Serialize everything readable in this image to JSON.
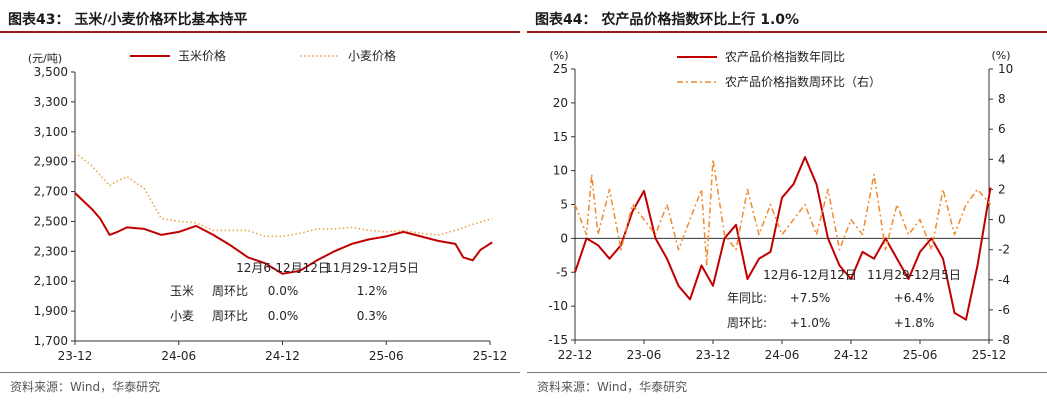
{
  "left": {
    "title": "图表43： 玉米/小麦价格环比基本持平",
    "source": "资料来源：Wind，华泰研究"
  },
  "right": {
    "title": "图表44： 农产品价格指数环比上行 1.0%",
    "source": "资料来源：Wind，华泰研究"
  },
  "colors": {
    "red": "#c00000",
    "orange": "#f08a30",
    "gold": "#e8a040",
    "title_rule": "#9a1b1b"
  },
  "chart_data": [
    {
      "type": "line",
      "ylabel": "(元/吨)",
      "ylim": [
        1700,
        3500
      ],
      "yticks": [
        "1,700",
        "1,900",
        "2,100",
        "2,300",
        "2,500",
        "2,700",
        "2,900",
        "3,100",
        "3,300",
        "3,500"
      ],
      "x_range": [
        "2023-12",
        "2025-12"
      ],
      "xtick_labels": [
        "23-12",
        "24-06",
        "24-12",
        "25-06",
        "25-12"
      ],
      "grid": false,
      "legend_position": "top",
      "series": [
        {
          "name": "玉米价格",
          "style": "solid",
          "x": [
            "2023-12-01",
            "2024-01-01",
            "2024-01-15",
            "2024-02-01",
            "2024-02-15",
            "2024-03-01",
            "2024-04-01",
            "2024-05-01",
            "2024-06-01",
            "2024-07-01",
            "2024-08-01",
            "2024-09-01",
            "2024-10-01",
            "2024-11-01",
            "2024-12-01",
            "2025-01-01",
            "2025-02-01",
            "2025-03-01",
            "2025-04-01",
            "2025-05-01",
            "2025-06-01",
            "2025-07-01",
            "2025-08-01",
            "2025-09-01",
            "2025-10-01",
            "2025-10-15",
            "2025-11-01",
            "2025-11-15",
            "2025-12-05"
          ],
          "values": [
            2690,
            2580,
            2520,
            2410,
            2430,
            2460,
            2450,
            2410,
            2430,
            2470,
            2410,
            2340,
            2260,
            2220,
            2150,
            2170,
            2240,
            2300,
            2350,
            2380,
            2400,
            2430,
            2400,
            2370,
            2350,
            2260,
            2240,
            2310,
            2360
          ]
        },
        {
          "name": "小麦价格",
          "style": "dotted",
          "x": [
            "2023-12-01",
            "2024-01-01",
            "2024-02-01",
            "2024-02-15",
            "2024-03-01",
            "2024-04-01",
            "2024-05-01",
            "2024-06-01",
            "2024-07-01",
            "2024-08-01",
            "2024-09-01",
            "2024-10-01",
            "2024-11-01",
            "2024-12-01",
            "2025-01-01",
            "2025-02-01",
            "2025-03-01",
            "2025-04-01",
            "2025-05-01",
            "2025-06-01",
            "2025-07-01",
            "2025-08-01",
            "2025-09-01",
            "2025-10-01",
            "2025-11-01",
            "2025-12-05"
          ],
          "values": [
            2960,
            2870,
            2740,
            2770,
            2800,
            2720,
            2520,
            2500,
            2490,
            2440,
            2440,
            2440,
            2400,
            2400,
            2420,
            2450,
            2450,
            2460,
            2440,
            2430,
            2440,
            2420,
            2410,
            2440,
            2480,
            2520
          ]
        }
      ],
      "annotation": {
        "headers": [
          "12月6-12月12日",
          "11月29-12月5日"
        ],
        "rows": [
          {
            "label": "玉米",
            "sub": "周环比",
            "values": [
              "0.0%",
              "1.2%"
            ]
          },
          {
            "label": "小麦",
            "sub": "周环比",
            "values": [
              "0.0%",
              "0.3%"
            ]
          }
        ]
      }
    },
    {
      "type": "line",
      "ylabel": "(%)",
      "ylabel_right": "(%)",
      "ylim": [
        -15,
        25
      ],
      "ylim_right": [
        -8,
        10
      ],
      "yticks": [
        "-15",
        "-10",
        "-5",
        "0",
        "5",
        "10",
        "15",
        "20",
        "25"
      ],
      "yticks_right": [
        "-8",
        "-6",
        "-4",
        "-2",
        "0",
        "2",
        "4",
        "6",
        "8",
        "10"
      ],
      "x_range": [
        "2022-12",
        "2025-12"
      ],
      "xtick_labels": [
        "22-12",
        "23-06",
        "23-12",
        "24-06",
        "24-12",
        "25-06",
        "25-12"
      ],
      "grid": false,
      "legend_position": "top",
      "series": [
        {
          "name": "农产品价格指数年同比",
          "style": "solid",
          "axis": "left",
          "x": [
            "2022-12-01",
            "2023-01-01",
            "2023-02-01",
            "2023-03-01",
            "2023-04-01",
            "2023-05-01",
            "2023-06-01",
            "2023-07-01",
            "2023-08-01",
            "2023-09-01",
            "2023-10-01",
            "2023-11-01",
            "2023-12-01",
            "2024-01-01",
            "2024-02-01",
            "2024-03-01",
            "2024-04-01",
            "2024-05-01",
            "2024-06-01",
            "2024-07-01",
            "2024-08-01",
            "2024-09-01",
            "2024-10-01",
            "2024-11-01",
            "2024-12-01",
            "2025-01-01",
            "2025-02-01",
            "2025-03-01",
            "2025-04-01",
            "2025-05-01",
            "2025-06-01",
            "2025-07-01",
            "2025-08-01",
            "2025-09-01",
            "2025-10-01",
            "2025-11-01",
            "2025-12-05"
          ],
          "values": [
            -5,
            0,
            -1,
            -3,
            -1,
            4,
            7,
            0,
            -3,
            -7,
            -9,
            -4,
            -7,
            0,
            2,
            -6,
            -3,
            -2,
            6,
            8,
            12,
            8,
            0,
            -4,
            -6,
            -2,
            -3,
            0,
            -3,
            -6,
            -2,
            0,
            -3,
            -11,
            -12,
            -4,
            7.5
          ]
        },
        {
          "name": "农产品价格指数周环比（右）",
          "style": "dash-dot",
          "axis": "right",
          "x": [
            "2022-12-01",
            "2023-01-01",
            "2023-01-15",
            "2023-02-01",
            "2023-03-01",
            "2023-04-01",
            "2023-05-01",
            "2023-06-01",
            "2023-07-01",
            "2023-08-01",
            "2023-09-01",
            "2023-10-01",
            "2023-11-01",
            "2023-11-15",
            "2023-12-01",
            "2024-01-01",
            "2024-02-01",
            "2024-03-01",
            "2024-04-01",
            "2024-05-01",
            "2024-06-01",
            "2024-07-01",
            "2024-08-01",
            "2024-09-01",
            "2024-10-01",
            "2024-11-01",
            "2024-12-01",
            "2025-01-01",
            "2025-02-01",
            "2025-03-01",
            "2025-04-01",
            "2025-05-01",
            "2025-06-01",
            "2025-07-01",
            "2025-08-01",
            "2025-09-01",
            "2025-10-01",
            "2025-11-01",
            "2025-12-05"
          ],
          "values": [
            1,
            -1,
            3,
            -1,
            2,
            -2,
            1,
            0,
            -1,
            1,
            -2,
            0,
            2,
            -3,
            4,
            -1,
            -2,
            2,
            -1,
            1,
            -1,
            0,
            1,
            -1,
            2,
            -2,
            0,
            -1,
            3,
            -2,
            1,
            -1,
            0,
            -2,
            2,
            -1,
            1,
            2,
            1
          ]
        }
      ],
      "annotation": {
        "headers": [
          "12月6-12月12日",
          "11月29-12月5日"
        ],
        "rows": [
          {
            "label": "年同比:",
            "values": [
              "+7.5%",
              "+6.4%"
            ]
          },
          {
            "label": "周环比:",
            "values": [
              "+1.0%",
              "+1.8%"
            ]
          }
        ]
      }
    }
  ]
}
